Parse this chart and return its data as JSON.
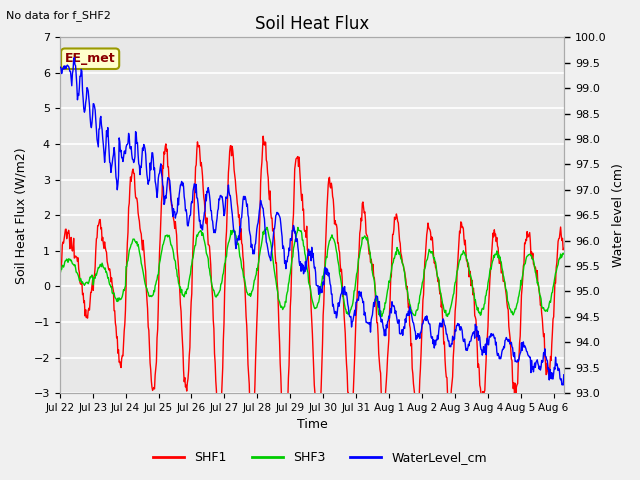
{
  "title": "Soil Heat Flux",
  "note": "No data for f_SHF2",
  "ylabel_left": "Soil Heat Flux (W/m2)",
  "ylabel_right": "Water level (cm)",
  "xlabel": "Time",
  "ylim_left": [
    -3.0,
    7.0
  ],
  "ylim_right": [
    93.0,
    100.0
  ],
  "yticks_left": [
    -3.0,
    -2.0,
    -1.0,
    0.0,
    1.0,
    2.0,
    3.0,
    4.0,
    5.0,
    6.0,
    7.0
  ],
  "yticks_right": [
    93.0,
    93.5,
    94.0,
    94.5,
    95.0,
    95.5,
    96.0,
    96.5,
    97.0,
    97.5,
    98.0,
    98.5,
    99.0,
    99.5,
    100.0
  ],
  "annotation_box": "EE_met",
  "color_SHF1": "#ff0000",
  "color_SHF3": "#00cc00",
  "color_WL": "#0000ff",
  "bg_color": "#e8e8e8",
  "grid_color": "#ffffff",
  "fig_bg": "#f0f0f0",
  "legend_labels": [
    "SHF1",
    "SHF3",
    "WaterLevel_cm"
  ],
  "start_day": 0,
  "end_day": 15.33,
  "xtick_labels": [
    "Jul 22",
    "Jul 23",
    "Jul 24",
    "Jul 25",
    "Jul 26",
    "Jul 27",
    "Jul 28",
    "Jul 29",
    "Jul 30",
    "Jul 31",
    "Aug 1",
    "Aug 2",
    "Aug 3",
    "Aug 4",
    "Aug 5",
    "Aug 6"
  ]
}
